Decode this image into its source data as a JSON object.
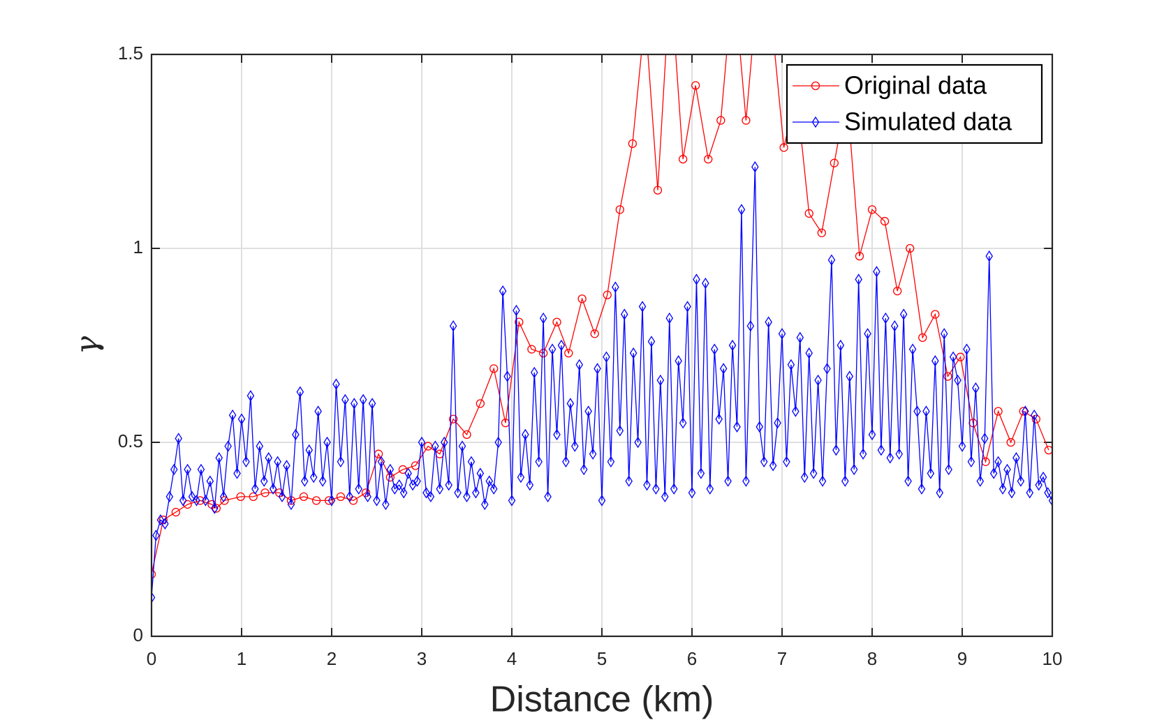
{
  "chart_data": {
    "type": "line",
    "xlabel": "Distance (km)",
    "ylabel": "γ",
    "xlim": [
      0,
      10
    ],
    "ylim": [
      0,
      1.5
    ],
    "xticks": [
      0,
      1,
      2,
      3,
      4,
      5,
      6,
      7,
      8,
      9,
      10
    ],
    "yticks": [
      0,
      0.5,
      1,
      1.5
    ],
    "grid": true,
    "legend": "upper right",
    "series": [
      {
        "name": "Original data",
        "color": "#ff0000",
        "marker": "circle",
        "x": [
          0,
          0.13,
          0.27,
          0.4,
          0.54,
          0.67,
          0.72,
          0.81,
          0.99,
          1.13,
          1.26,
          1.42,
          1.55,
          1.69,
          1.83,
          1.97,
          2.1,
          2.24,
          2.38,
          2.52,
          2.65,
          2.79,
          2.93,
          3.07,
          3.2,
          3.35,
          3.5,
          3.65,
          3.8,
          3.93,
          4.08,
          4.22,
          4.35,
          4.5,
          4.63,
          4.78,
          4.92,
          5.06,
          5.2,
          5.34,
          5.48,
          5.62,
          5.76,
          5.9,
          6.04,
          6.18,
          6.32,
          6.46,
          6.6,
          6.74,
          6.88,
          7.02,
          7.16,
          7.3,
          7.44,
          7.58,
          7.72,
          7.86,
          8.0,
          8.14,
          8.28,
          8.42,
          8.56,
          8.7,
          8.84,
          8.98,
          9.12,
          9.26,
          9.4,
          9.54,
          9.68,
          9.82,
          9.96
        ],
        "values": [
          0.16,
          0.3,
          0.32,
          0.34,
          0.35,
          0.34,
          0.33,
          0.35,
          0.36,
          0.36,
          0.37,
          0.37,
          0.35,
          0.36,
          0.35,
          0.35,
          0.36,
          0.35,
          0.37,
          0.47,
          0.41,
          0.43,
          0.44,
          0.49,
          0.47,
          0.56,
          0.52,
          0.6,
          0.69,
          0.55,
          0.81,
          0.74,
          0.73,
          0.81,
          0.73,
          0.87,
          0.78,
          0.88,
          1.1,
          1.27,
          1.6,
          1.15,
          1.7,
          1.23,
          1.42,
          1.23,
          1.33,
          1.7,
          1.33,
          1.7,
          1.6,
          1.26,
          1.4,
          1.09,
          1.04,
          1.22,
          1.4,
          0.98,
          1.1,
          1.07,
          0.89,
          1.0,
          0.77,
          0.83,
          0.67,
          0.72,
          0.55,
          0.45,
          0.58,
          0.5,
          0.58,
          0.56,
          0.48
        ]
      },
      {
        "name": "Simulated data",
        "color": "#0000ff",
        "marker": "diamond",
        "x": [
          0,
          0.05,
          0.1,
          0.15,
          0.2,
          0.25,
          0.3,
          0.35,
          0.4,
          0.45,
          0.5,
          0.55,
          0.6,
          0.65,
          0.7,
          0.75,
          0.8,
          0.85,
          0.9,
          0.95,
          1,
          1.05,
          1.1,
          1.15,
          1.2,
          1.25,
          1.3,
          1.35,
          1.4,
          1.45,
          1.5,
          1.55,
          1.6,
          1.65,
          1.7,
          1.75,
          1.8,
          1.85,
          1.9,
          1.95,
          2,
          2.05,
          2.1,
          2.15,
          2.2,
          2.25,
          2.3,
          2.35,
          2.4,
          2.45,
          2.5,
          2.55,
          2.6,
          2.65,
          2.7,
          2.75,
          2.8,
          2.85,
          2.9,
          2.95,
          3,
          3.05,
          3.1,
          3.15,
          3.2,
          3.25,
          3.3,
          3.35,
          3.4,
          3.45,
          3.5,
          3.55,
          3.6,
          3.65,
          3.7,
          3.75,
          3.8,
          3.85,
          3.9,
          3.95,
          4,
          4.05,
          4.1,
          4.15,
          4.2,
          4.25,
          4.3,
          4.35,
          4.4,
          4.45,
          4.5,
          4.55,
          4.6,
          4.65,
          4.7,
          4.75,
          4.8,
          4.85,
          4.9,
          4.95,
          5,
          5.05,
          5.1,
          5.15,
          5.2,
          5.25,
          5.3,
          5.35,
          5.4,
          5.45,
          5.5,
          5.55,
          5.6,
          5.65,
          5.7,
          5.75,
          5.8,
          5.85,
          5.9,
          5.95,
          6,
          6.05,
          6.1,
          6.15,
          6.2,
          6.25,
          6.3,
          6.35,
          6.4,
          6.45,
          6.5,
          6.55,
          6.6,
          6.65,
          6.7,
          6.75,
          6.8,
          6.85,
          6.9,
          6.95,
          7,
          7.05,
          7.1,
          7.15,
          7.2,
          7.25,
          7.3,
          7.35,
          7.4,
          7.45,
          7.5,
          7.55,
          7.6,
          7.65,
          7.7,
          7.75,
          7.8,
          7.85,
          7.9,
          7.95,
          8,
          8.05,
          8.1,
          8.15,
          8.2,
          8.25,
          8.3,
          8.35,
          8.4,
          8.45,
          8.5,
          8.55,
          8.6,
          8.65,
          8.7,
          8.75,
          8.8,
          8.85,
          8.9,
          8.95,
          9,
          9.05,
          9.1,
          9.15,
          9.2,
          9.25,
          9.3,
          9.35,
          9.4,
          9.45,
          9.5,
          9.55,
          9.6,
          9.65,
          9.7,
          9.75,
          9.8,
          9.85,
          9.9,
          9.95,
          10
        ],
        "values": [
          0.1,
          0.26,
          0.3,
          0.29,
          0.36,
          0.43,
          0.51,
          0.35,
          0.43,
          0.36,
          0.35,
          0.43,
          0.35,
          0.4,
          0.33,
          0.46,
          0.36,
          0.49,
          0.57,
          0.42,
          0.56,
          0.45,
          0.62,
          0.38,
          0.49,
          0.4,
          0.46,
          0.38,
          0.45,
          0.36,
          0.44,
          0.34,
          0.52,
          0.63,
          0.4,
          0.48,
          0.41,
          0.58,
          0.4,
          0.5,
          0.35,
          0.65,
          0.45,
          0.61,
          0.36,
          0.6,
          0.38,
          0.61,
          0.36,
          0.6,
          0.35,
          0.45,
          0.34,
          0.43,
          0.38,
          0.39,
          0.37,
          0.42,
          0.39,
          0.4,
          0.5,
          0.37,
          0.36,
          0.49,
          0.38,
          0.5,
          0.39,
          0.8,
          0.37,
          0.49,
          0.36,
          0.45,
          0.37,
          0.42,
          0.34,
          0.4,
          0.38,
          0.5,
          0.89,
          0.67,
          0.35,
          0.84,
          0.41,
          0.52,
          0.39,
          0.68,
          0.45,
          0.82,
          0.36,
          0.74,
          0.52,
          0.75,
          0.45,
          0.6,
          0.49,
          0.7,
          0.43,
          0.58,
          0.47,
          0.69,
          0.35,
          0.72,
          0.45,
          0.9,
          0.53,
          0.83,
          0.4,
          0.73,
          0.5,
          0.85,
          0.39,
          0.76,
          0.38,
          0.66,
          0.36,
          0.82,
          0.38,
          0.71,
          0.55,
          0.85,
          0.37,
          0.92,
          0.42,
          0.91,
          0.38,
          0.74,
          0.56,
          0.69,
          0.4,
          0.75,
          0.54,
          1.1,
          0.4,
          0.8,
          1.21,
          0.54,
          0.45,
          0.81,
          0.44,
          0.55,
          0.78,
          0.45,
          0.7,
          0.58,
          0.77,
          0.41,
          0.73,
          0.42,
          0.66,
          0.4,
          0.69,
          0.97,
          0.48,
          0.75,
          0.4,
          0.67,
          0.43,
          0.92,
          0.47,
          0.78,
          0.52,
          0.94,
          0.48,
          0.82,
          0.46,
          0.8,
          0.47,
          0.83,
          0.4,
          0.74,
          0.58,
          0.38,
          0.58,
          0.42,
          0.71,
          0.37,
          0.78,
          0.43,
          0.72,
          0.66,
          0.49,
          0.74,
          0.45,
          0.64,
          0.4,
          0.51,
          0.98,
          0.42,
          0.45,
          0.38,
          0.43,
          0.37,
          0.46,
          0.4,
          0.58,
          0.37,
          0.57,
          0.39,
          0.41,
          0.37,
          0.35
        ]
      }
    ]
  }
}
